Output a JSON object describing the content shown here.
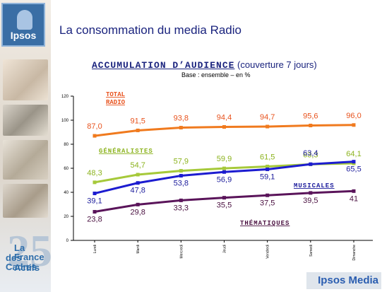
{
  "header": {
    "logo_text": "Ipsos",
    "title": "La consommation du media Radio"
  },
  "chart_title": {
    "main": "ACCUMULATION D’AUDIENCE",
    "sub": " (couverture 7 jours)",
    "base": "Base : ensemble – en %"
  },
  "anniversary": {
    "number": "25",
    "line1": "La France",
    "line2": "des Cadres",
    "line3": "Actifs"
  },
  "footer": {
    "brand": "Ipsos Media"
  },
  "chart_data": {
    "type": "line",
    "categories": [
      "Lundi",
      "Mardi",
      "Mercredi",
      "Jeudi",
      "Vendredi",
      "Samedi",
      "Dimanche"
    ],
    "ylim": [
      0,
      120
    ],
    "yticks": [
      0,
      20,
      40,
      60,
      80,
      100,
      120
    ],
    "grid": false,
    "series": [
      {
        "name": "TOTAL RADIO",
        "color": "#f07a1e",
        "values": [
          87.0,
          91.5,
          93.8,
          94.4,
          94.7,
          95.6,
          96.0
        ],
        "labels": [
          "87,0",
          "91,5",
          "93,8",
          "94,4",
          "94,7",
          "95,6",
          "96,0"
        ],
        "label_color": "#e8531e"
      },
      {
        "name": "GÉNÉRALISTES",
        "color": "#a6c93a",
        "values": [
          48.3,
          54.7,
          57.9,
          59.9,
          61.5,
          63.3,
          64.1
        ],
        "labels": [
          "48,3",
          "54,7",
          "57,9",
          "59,9",
          "61,5",
          "63,3",
          "64,1"
        ],
        "label_color": "#8cb31e"
      },
      {
        "name": "MUSICALES",
        "color": "#1c1cd0",
        "values": [
          39.1,
          47.8,
          53.8,
          56.9,
          59.1,
          63.4,
          65.5
        ],
        "labels": [
          "39,1",
          "47,8",
          "53,8",
          "56,9",
          "59,1",
          "63,4",
          "65,5"
        ],
        "label_color": "#1c1c9c"
      },
      {
        "name": "THÉMATIQUES",
        "color": "#5a145a",
        "values": [
          23.8,
          29.8,
          33.3,
          35.5,
          37.5,
          39.5,
          41
        ],
        "labels": [
          "23,8",
          "29,8",
          "33,3",
          "35,5",
          "37,5",
          "39,5",
          "41"
        ],
        "label_color": "#4a1040"
      }
    ]
  }
}
